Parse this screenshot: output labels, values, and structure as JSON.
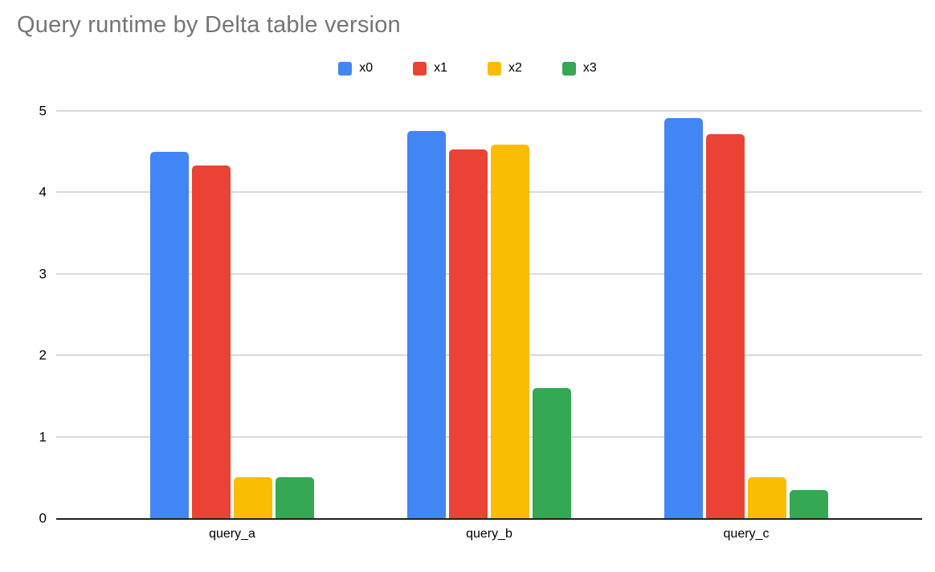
{
  "title": "Query runtime by Delta table version",
  "chart_data": {
    "type": "bar",
    "title": "Query runtime by Delta table version",
    "categories": [
      "query_a",
      "query_b",
      "query_c"
    ],
    "series": [
      {
        "name": "x0",
        "color": "#4285F4",
        "values": [
          4.5,
          4.75,
          4.91
        ]
      },
      {
        "name": "x1",
        "color": "#EA4335",
        "values": [
          4.33,
          4.53,
          4.71
        ]
      },
      {
        "name": "x2",
        "color": "#FBBC04",
        "values": [
          0.5,
          4.59,
          0.5
        ]
      },
      {
        "name": "x3",
        "color": "#34A853",
        "values": [
          0.5,
          1.6,
          0.35
        ]
      }
    ],
    "xlabel": "",
    "ylabel": "",
    "ylim": [
      0,
      5
    ],
    "yticks": [
      0,
      1,
      2,
      3,
      4,
      5
    ],
    "grid": true,
    "legend_position": "top",
    "colors": {
      "title_text": "#757575",
      "gridline": "#dadada",
      "axis_line": "#212121",
      "tick_text": "#000000"
    }
  }
}
